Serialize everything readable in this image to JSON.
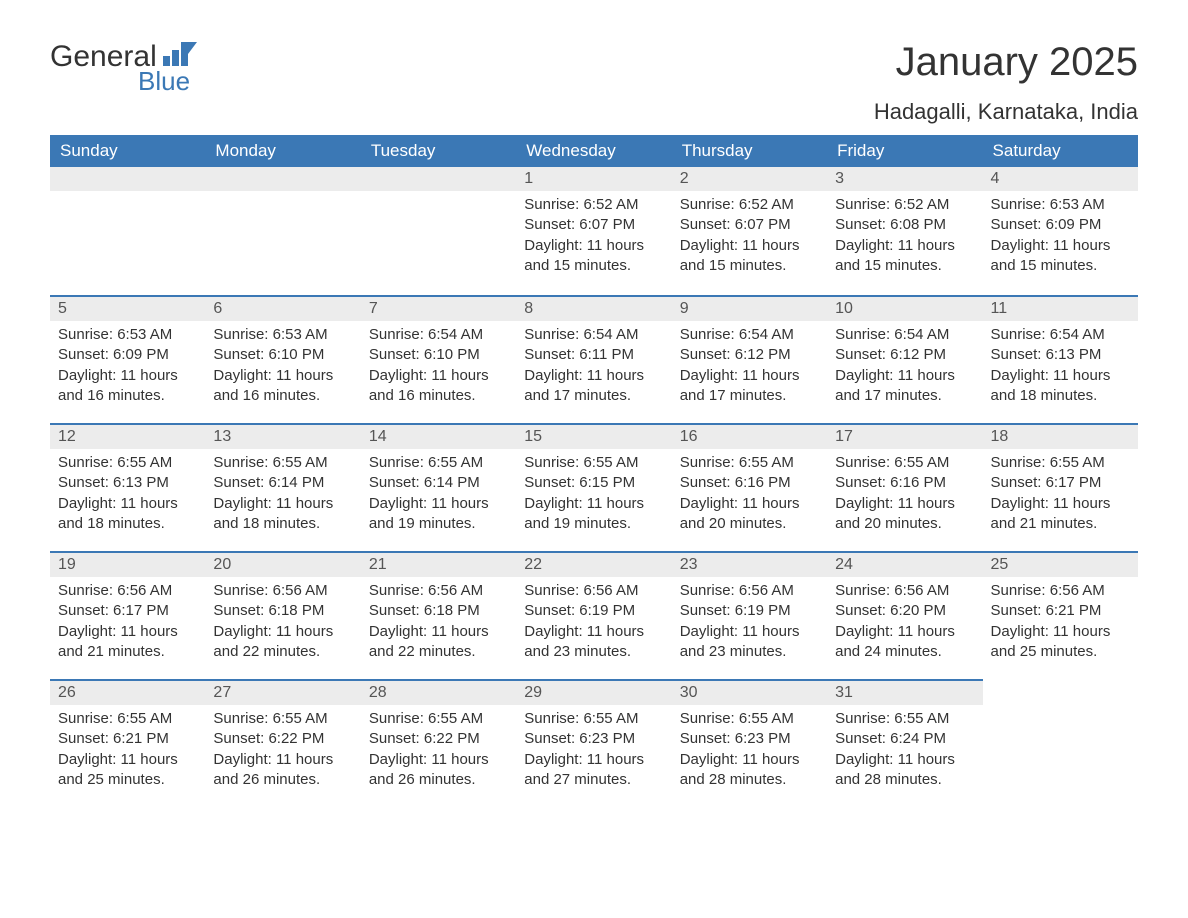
{
  "logo": {
    "text1": "General",
    "text2": "Blue"
  },
  "title": "January 2025",
  "subtitle": "Hadagalli, Karnataka, India",
  "colors": {
    "header_bg": "#3b78b5",
    "header_text": "#ffffff",
    "daynum_bg": "#ececec",
    "border_top": "#3b78b5",
    "body_text": "#333333"
  },
  "weekdays": [
    "Sunday",
    "Monday",
    "Tuesday",
    "Wednesday",
    "Thursday",
    "Friday",
    "Saturday"
  ],
  "weeks": [
    [
      null,
      null,
      null,
      {
        "n": "1",
        "sr": "Sunrise: 6:52 AM",
        "ss": "Sunset: 6:07 PM",
        "d1": "Daylight: 11 hours",
        "d2": "and 15 minutes."
      },
      {
        "n": "2",
        "sr": "Sunrise: 6:52 AM",
        "ss": "Sunset: 6:07 PM",
        "d1": "Daylight: 11 hours",
        "d2": "and 15 minutes."
      },
      {
        "n": "3",
        "sr": "Sunrise: 6:52 AM",
        "ss": "Sunset: 6:08 PM",
        "d1": "Daylight: 11 hours",
        "d2": "and 15 minutes."
      },
      {
        "n": "4",
        "sr": "Sunrise: 6:53 AM",
        "ss": "Sunset: 6:09 PM",
        "d1": "Daylight: 11 hours",
        "d2": "and 15 minutes."
      }
    ],
    [
      {
        "n": "5",
        "sr": "Sunrise: 6:53 AM",
        "ss": "Sunset: 6:09 PM",
        "d1": "Daylight: 11 hours",
        "d2": "and 16 minutes."
      },
      {
        "n": "6",
        "sr": "Sunrise: 6:53 AM",
        "ss": "Sunset: 6:10 PM",
        "d1": "Daylight: 11 hours",
        "d2": "and 16 minutes."
      },
      {
        "n": "7",
        "sr": "Sunrise: 6:54 AM",
        "ss": "Sunset: 6:10 PM",
        "d1": "Daylight: 11 hours",
        "d2": "and 16 minutes."
      },
      {
        "n": "8",
        "sr": "Sunrise: 6:54 AM",
        "ss": "Sunset: 6:11 PM",
        "d1": "Daylight: 11 hours",
        "d2": "and 17 minutes."
      },
      {
        "n": "9",
        "sr": "Sunrise: 6:54 AM",
        "ss": "Sunset: 6:12 PM",
        "d1": "Daylight: 11 hours",
        "d2": "and 17 minutes."
      },
      {
        "n": "10",
        "sr": "Sunrise: 6:54 AM",
        "ss": "Sunset: 6:12 PM",
        "d1": "Daylight: 11 hours",
        "d2": "and 17 minutes."
      },
      {
        "n": "11",
        "sr": "Sunrise: 6:54 AM",
        "ss": "Sunset: 6:13 PM",
        "d1": "Daylight: 11 hours",
        "d2": "and 18 minutes."
      }
    ],
    [
      {
        "n": "12",
        "sr": "Sunrise: 6:55 AM",
        "ss": "Sunset: 6:13 PM",
        "d1": "Daylight: 11 hours",
        "d2": "and 18 minutes."
      },
      {
        "n": "13",
        "sr": "Sunrise: 6:55 AM",
        "ss": "Sunset: 6:14 PM",
        "d1": "Daylight: 11 hours",
        "d2": "and 18 minutes."
      },
      {
        "n": "14",
        "sr": "Sunrise: 6:55 AM",
        "ss": "Sunset: 6:14 PM",
        "d1": "Daylight: 11 hours",
        "d2": "and 19 minutes."
      },
      {
        "n": "15",
        "sr": "Sunrise: 6:55 AM",
        "ss": "Sunset: 6:15 PM",
        "d1": "Daylight: 11 hours",
        "d2": "and 19 minutes."
      },
      {
        "n": "16",
        "sr": "Sunrise: 6:55 AM",
        "ss": "Sunset: 6:16 PM",
        "d1": "Daylight: 11 hours",
        "d2": "and 20 minutes."
      },
      {
        "n": "17",
        "sr": "Sunrise: 6:55 AM",
        "ss": "Sunset: 6:16 PM",
        "d1": "Daylight: 11 hours",
        "d2": "and 20 minutes."
      },
      {
        "n": "18",
        "sr": "Sunrise: 6:55 AM",
        "ss": "Sunset: 6:17 PM",
        "d1": "Daylight: 11 hours",
        "d2": "and 21 minutes."
      }
    ],
    [
      {
        "n": "19",
        "sr": "Sunrise: 6:56 AM",
        "ss": "Sunset: 6:17 PM",
        "d1": "Daylight: 11 hours",
        "d2": "and 21 minutes."
      },
      {
        "n": "20",
        "sr": "Sunrise: 6:56 AM",
        "ss": "Sunset: 6:18 PM",
        "d1": "Daylight: 11 hours",
        "d2": "and 22 minutes."
      },
      {
        "n": "21",
        "sr": "Sunrise: 6:56 AM",
        "ss": "Sunset: 6:18 PM",
        "d1": "Daylight: 11 hours",
        "d2": "and 22 minutes."
      },
      {
        "n": "22",
        "sr": "Sunrise: 6:56 AM",
        "ss": "Sunset: 6:19 PM",
        "d1": "Daylight: 11 hours",
        "d2": "and 23 minutes."
      },
      {
        "n": "23",
        "sr": "Sunrise: 6:56 AM",
        "ss": "Sunset: 6:19 PM",
        "d1": "Daylight: 11 hours",
        "d2": "and 23 minutes."
      },
      {
        "n": "24",
        "sr": "Sunrise: 6:56 AM",
        "ss": "Sunset: 6:20 PM",
        "d1": "Daylight: 11 hours",
        "d2": "and 24 minutes."
      },
      {
        "n": "25",
        "sr": "Sunrise: 6:56 AM",
        "ss": "Sunset: 6:21 PM",
        "d1": "Daylight: 11 hours",
        "d2": "and 25 minutes."
      }
    ],
    [
      {
        "n": "26",
        "sr": "Sunrise: 6:55 AM",
        "ss": "Sunset: 6:21 PM",
        "d1": "Daylight: 11 hours",
        "d2": "and 25 minutes."
      },
      {
        "n": "27",
        "sr": "Sunrise: 6:55 AM",
        "ss": "Sunset: 6:22 PM",
        "d1": "Daylight: 11 hours",
        "d2": "and 26 minutes."
      },
      {
        "n": "28",
        "sr": "Sunrise: 6:55 AM",
        "ss": "Sunset: 6:22 PM",
        "d1": "Daylight: 11 hours",
        "d2": "and 26 minutes."
      },
      {
        "n": "29",
        "sr": "Sunrise: 6:55 AM",
        "ss": "Sunset: 6:23 PM",
        "d1": "Daylight: 11 hours",
        "d2": "and 27 minutes."
      },
      {
        "n": "30",
        "sr": "Sunrise: 6:55 AM",
        "ss": "Sunset: 6:23 PM",
        "d1": "Daylight: 11 hours",
        "d2": "and 28 minutes."
      },
      {
        "n": "31",
        "sr": "Sunrise: 6:55 AM",
        "ss": "Sunset: 6:24 PM",
        "d1": "Daylight: 11 hours",
        "d2": "and 28 minutes."
      },
      null
    ]
  ]
}
